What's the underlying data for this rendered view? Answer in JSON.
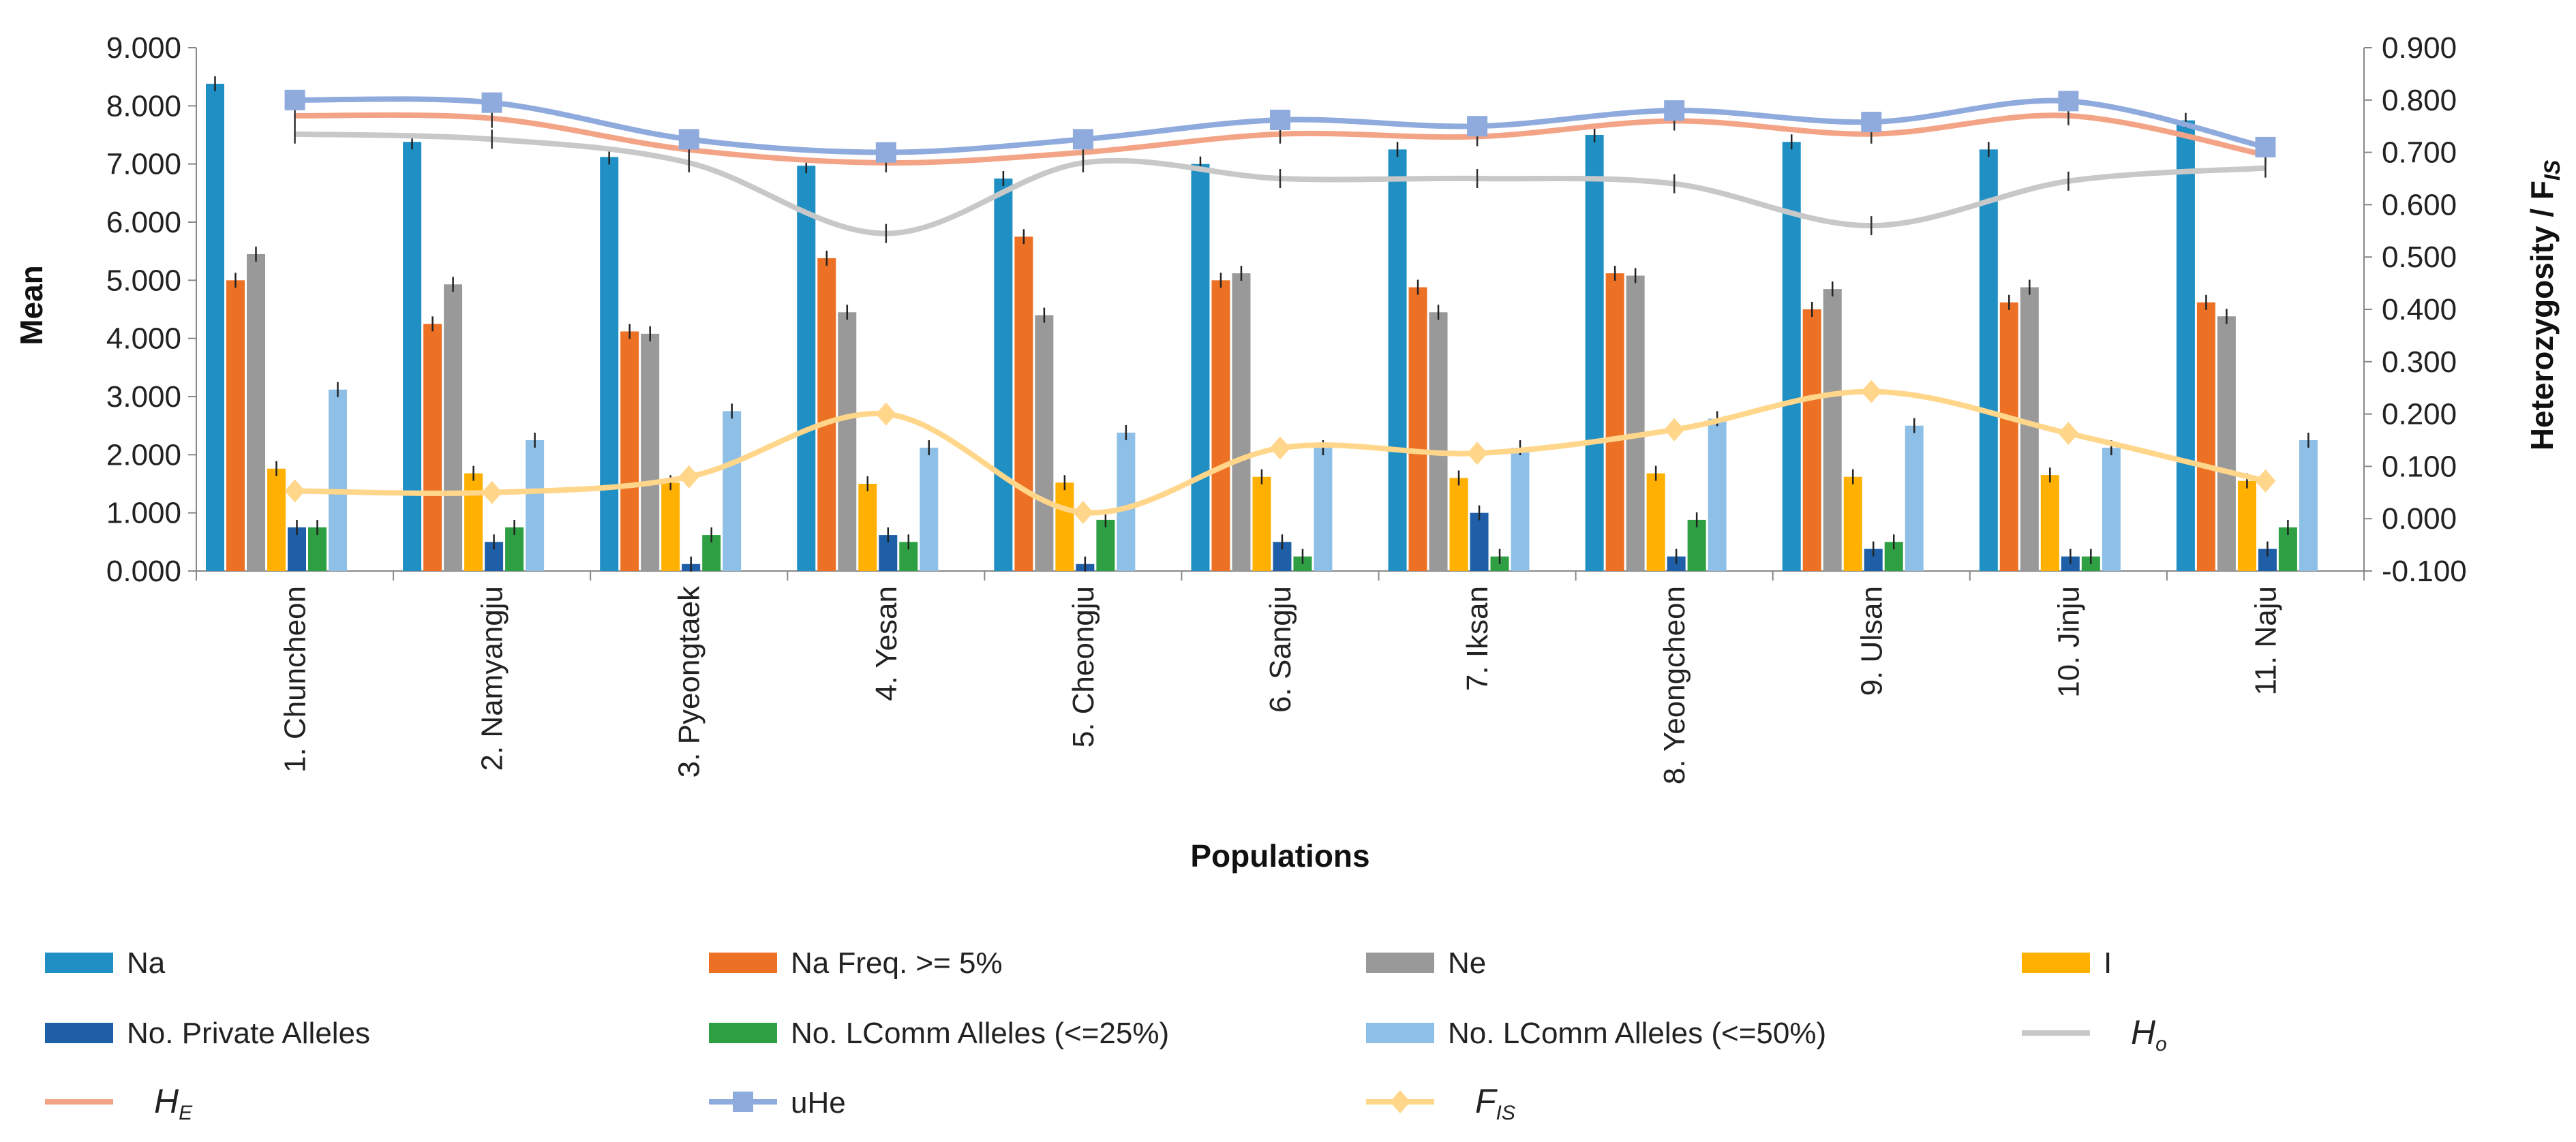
{
  "chart_data": {
    "type": "bar",
    "xlabel": "Populations",
    "ylabel": "Mean",
    "y2label": "Heterozygosity / F",
    "y2label_sub": "IS",
    "ylim": [
      0,
      9
    ],
    "y2lim": [
      -0.1,
      0.9
    ],
    "yticks": [
      "0.000",
      "1.000",
      "2.000",
      "3.000",
      "4.000",
      "5.000",
      "6.000",
      "7.000",
      "8.000",
      "9.000"
    ],
    "y2ticks": [
      "-0.100",
      "0.000",
      "0.100",
      "0.200",
      "0.300",
      "0.400",
      "0.500",
      "0.600",
      "0.700",
      "0.800",
      "0.900"
    ],
    "categories": [
      "1. Chuncheon",
      "2. Namyangju",
      "3. Pyeongtaek",
      "4. Yesan",
      "5. Cheongju",
      "6. Sangju",
      "7. Iksan",
      "8. Yeongcheon",
      "9. Ulsan",
      "10. Jinju",
      "11. Naju"
    ],
    "bar_series": [
      {
        "name": "Na",
        "color": "#1f8fc4",
        "values": [
          8.38,
          7.38,
          7.12,
          6.97,
          6.75,
          7.0,
          7.25,
          7.5,
          7.38,
          7.25,
          7.75
        ]
      },
      {
        "name": "Na Freq. >= 5%",
        "color": "#ed7125",
        "values": [
          5.0,
          4.25,
          4.12,
          5.38,
          5.75,
          5.0,
          4.88,
          5.12,
          4.5,
          4.62,
          4.62
        ]
      },
      {
        "name": "Ne",
        "color": "#999999",
        "values": [
          5.45,
          4.93,
          4.08,
          4.45,
          4.4,
          5.12,
          4.45,
          5.08,
          4.85,
          4.88,
          4.38
        ]
      },
      {
        "name": "I",
        "color": "#ffb000",
        "values": [
          1.76,
          1.68,
          1.52,
          1.5,
          1.52,
          1.62,
          1.6,
          1.68,
          1.62,
          1.65,
          1.55
        ]
      },
      {
        "name": "No. Private Alleles",
        "color": "#1f5fa8",
        "values": [
          0.75,
          0.5,
          0.12,
          0.62,
          0.12,
          0.5,
          1.0,
          0.25,
          0.38,
          0.25,
          0.38
        ]
      },
      {
        "name": "No. LComm Alleles (<=25%)",
        "color": "#2ea043",
        "values": [
          0.75,
          0.75,
          0.62,
          0.5,
          0.88,
          0.25,
          0.25,
          0.88,
          0.5,
          0.25,
          0.75
        ]
      },
      {
        "name": "No. LComm Alleles (<=50%)",
        "color": "#8ebfe6",
        "values": [
          3.12,
          2.25,
          2.75,
          2.12,
          2.38,
          2.12,
          2.12,
          2.62,
          2.5,
          2.12,
          2.25
        ]
      }
    ],
    "line_series": [
      {
        "name": "Ho",
        "name_main": "H",
        "name_sub": "o",
        "color": "#c8c8c8",
        "marker": "none",
        "values": [
          0.735,
          0.725,
          0.68,
          0.545,
          0.68,
          0.65,
          0.65,
          0.64,
          0.56,
          0.645,
          0.67
        ]
      },
      {
        "name": "HE",
        "name_main": "H",
        "name_sub": "E",
        "color": "#f4a486",
        "marker": "none",
        "values": [
          0.77,
          0.765,
          0.705,
          0.68,
          0.7,
          0.735,
          0.73,
          0.76,
          0.735,
          0.77,
          0.695
        ]
      },
      {
        "name": "uHe",
        "name_main": "uHe",
        "name_sub": "",
        "color": "#8faadc",
        "marker": "square",
        "values": [
          0.8,
          0.795,
          0.725,
          0.7,
          0.725,
          0.762,
          0.75,
          0.78,
          0.758,
          0.798,
          0.71
        ]
      },
      {
        "name": "FIS",
        "name_main": "F",
        "name_sub": "IS",
        "color": "#ffd68a",
        "marker": "diamond",
        "values": [
          0.053,
          0.05,
          0.08,
          0.2,
          0.012,
          0.135,
          0.125,
          0.17,
          0.243,
          0.163,
          0.072
        ]
      }
    ],
    "legend_position": "bottom"
  }
}
